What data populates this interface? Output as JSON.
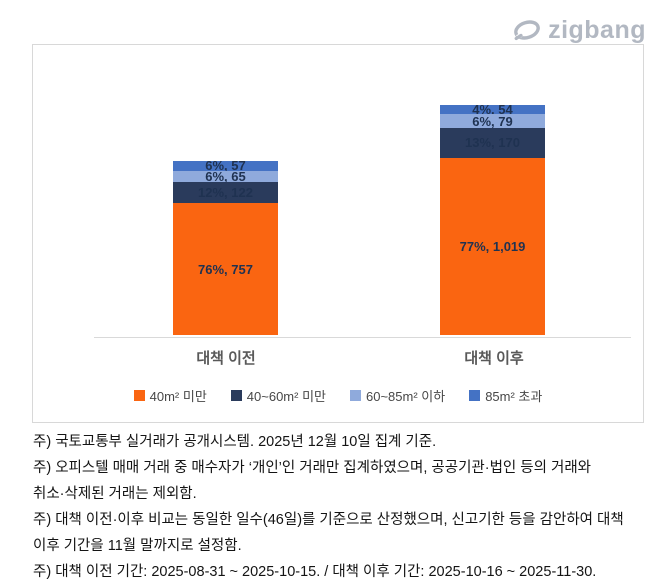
{
  "logo": {
    "text": "zigbang"
  },
  "chart_data": {
    "type": "bar",
    "subtype": "stacked",
    "title": "",
    "categories": [
      "대책 이전",
      "대책 이후"
    ],
    "series": [
      {
        "name": "40m² 미만",
        "color": "#FA6511",
        "values": [
          757,
          1019
        ],
        "pct": [
          "76%",
          "77%"
        ],
        "labels": [
          "76%, 757",
          "77%, 1,019"
        ]
      },
      {
        "name": "40~60m² 미만",
        "color": "#2A3B5C",
        "values": [
          122,
          170
        ],
        "pct": [
          "12%",
          "13%"
        ],
        "labels": [
          "12%, 122",
          "13%, 170"
        ]
      },
      {
        "name": "60~85m² 이하",
        "color": "#8FAADC",
        "values": [
          65,
          79
        ],
        "pct": [
          "6%",
          "6%"
        ],
        "labels": [
          "6%, 65",
          "6%, 79"
        ]
      },
      {
        "name": "85m² 초과",
        "color": "#4472C4",
        "values": [
          57,
          54
        ],
        "pct": [
          "6%",
          "4%"
        ],
        "labels": [
          "6%, 57",
          "4%, 54"
        ]
      }
    ],
    "totals": [
      1001,
      1322
    ],
    "ylim": [
      0,
      1400
    ],
    "grid": false,
    "legend_position": "bottom",
    "label_color": "#1F3251",
    "axis_color": "#D9D9D9"
  },
  "notes": [
    "주) 국토교통부 실거래가 공개시스템. 2025년 12월 10일 집계 기준.",
    "주) 오피스텔 매매 거래 중 매수자가 ‘개인’인 거래만 집계하였으며, 공공기관·법인 등의 거래와",
    "취소·삭제된 거래는 제외함.",
    "주) 대책 이전·이후 비교는 동일한 일수(46일)를 기준으로 산정했으며, 신고기한 등을 감안하여 대책",
    "이후 기간을 11월 말까지로 설정함.",
    "주) 대책 이전 기간: 2025-08-31 ~ 2025-10-15. / 대책 이후 기간: 2025-10-16 ~ 2025-11-30."
  ]
}
